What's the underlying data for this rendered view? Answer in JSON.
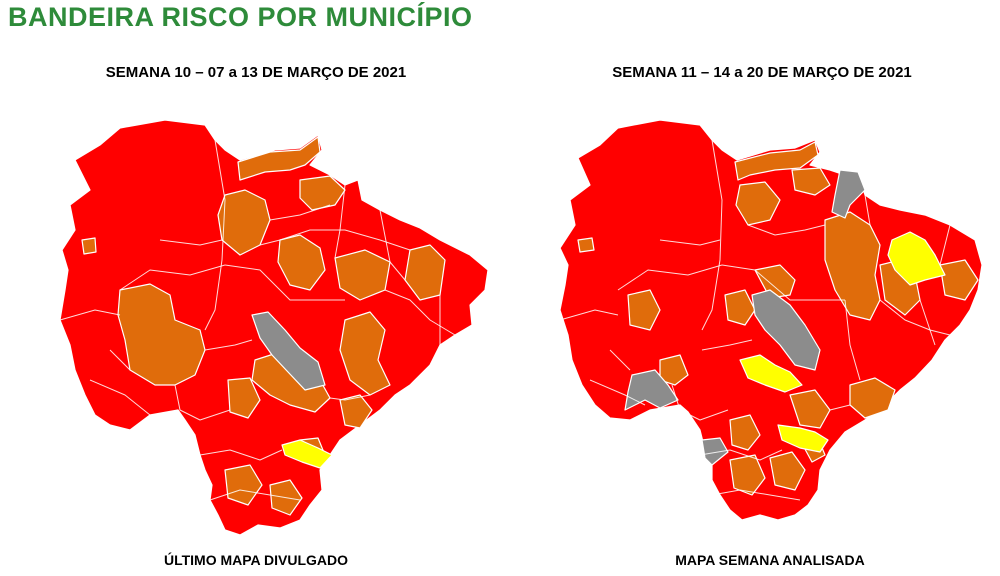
{
  "header": {
    "title": "BANDEIRA RISCO POR  MUNICÍPIO"
  },
  "colors": {
    "red": "#ff0000",
    "orange": "#e06c0b",
    "gray": "#8c8c8c",
    "yellow": "#ffff00",
    "title_green": "#2e8b3a"
  },
  "maps": [
    {
      "title": "SEMANA 10 – 07 a 13 DE MARÇO DE 2021",
      "caption": "ÚLTIMO MAPA DIVULGADO"
    },
    {
      "title": "SEMANA 11 – 14 a 20 DE MARÇO DE 2021",
      "caption": "MAPA SEMANA ANALISADA"
    }
  ]
}
